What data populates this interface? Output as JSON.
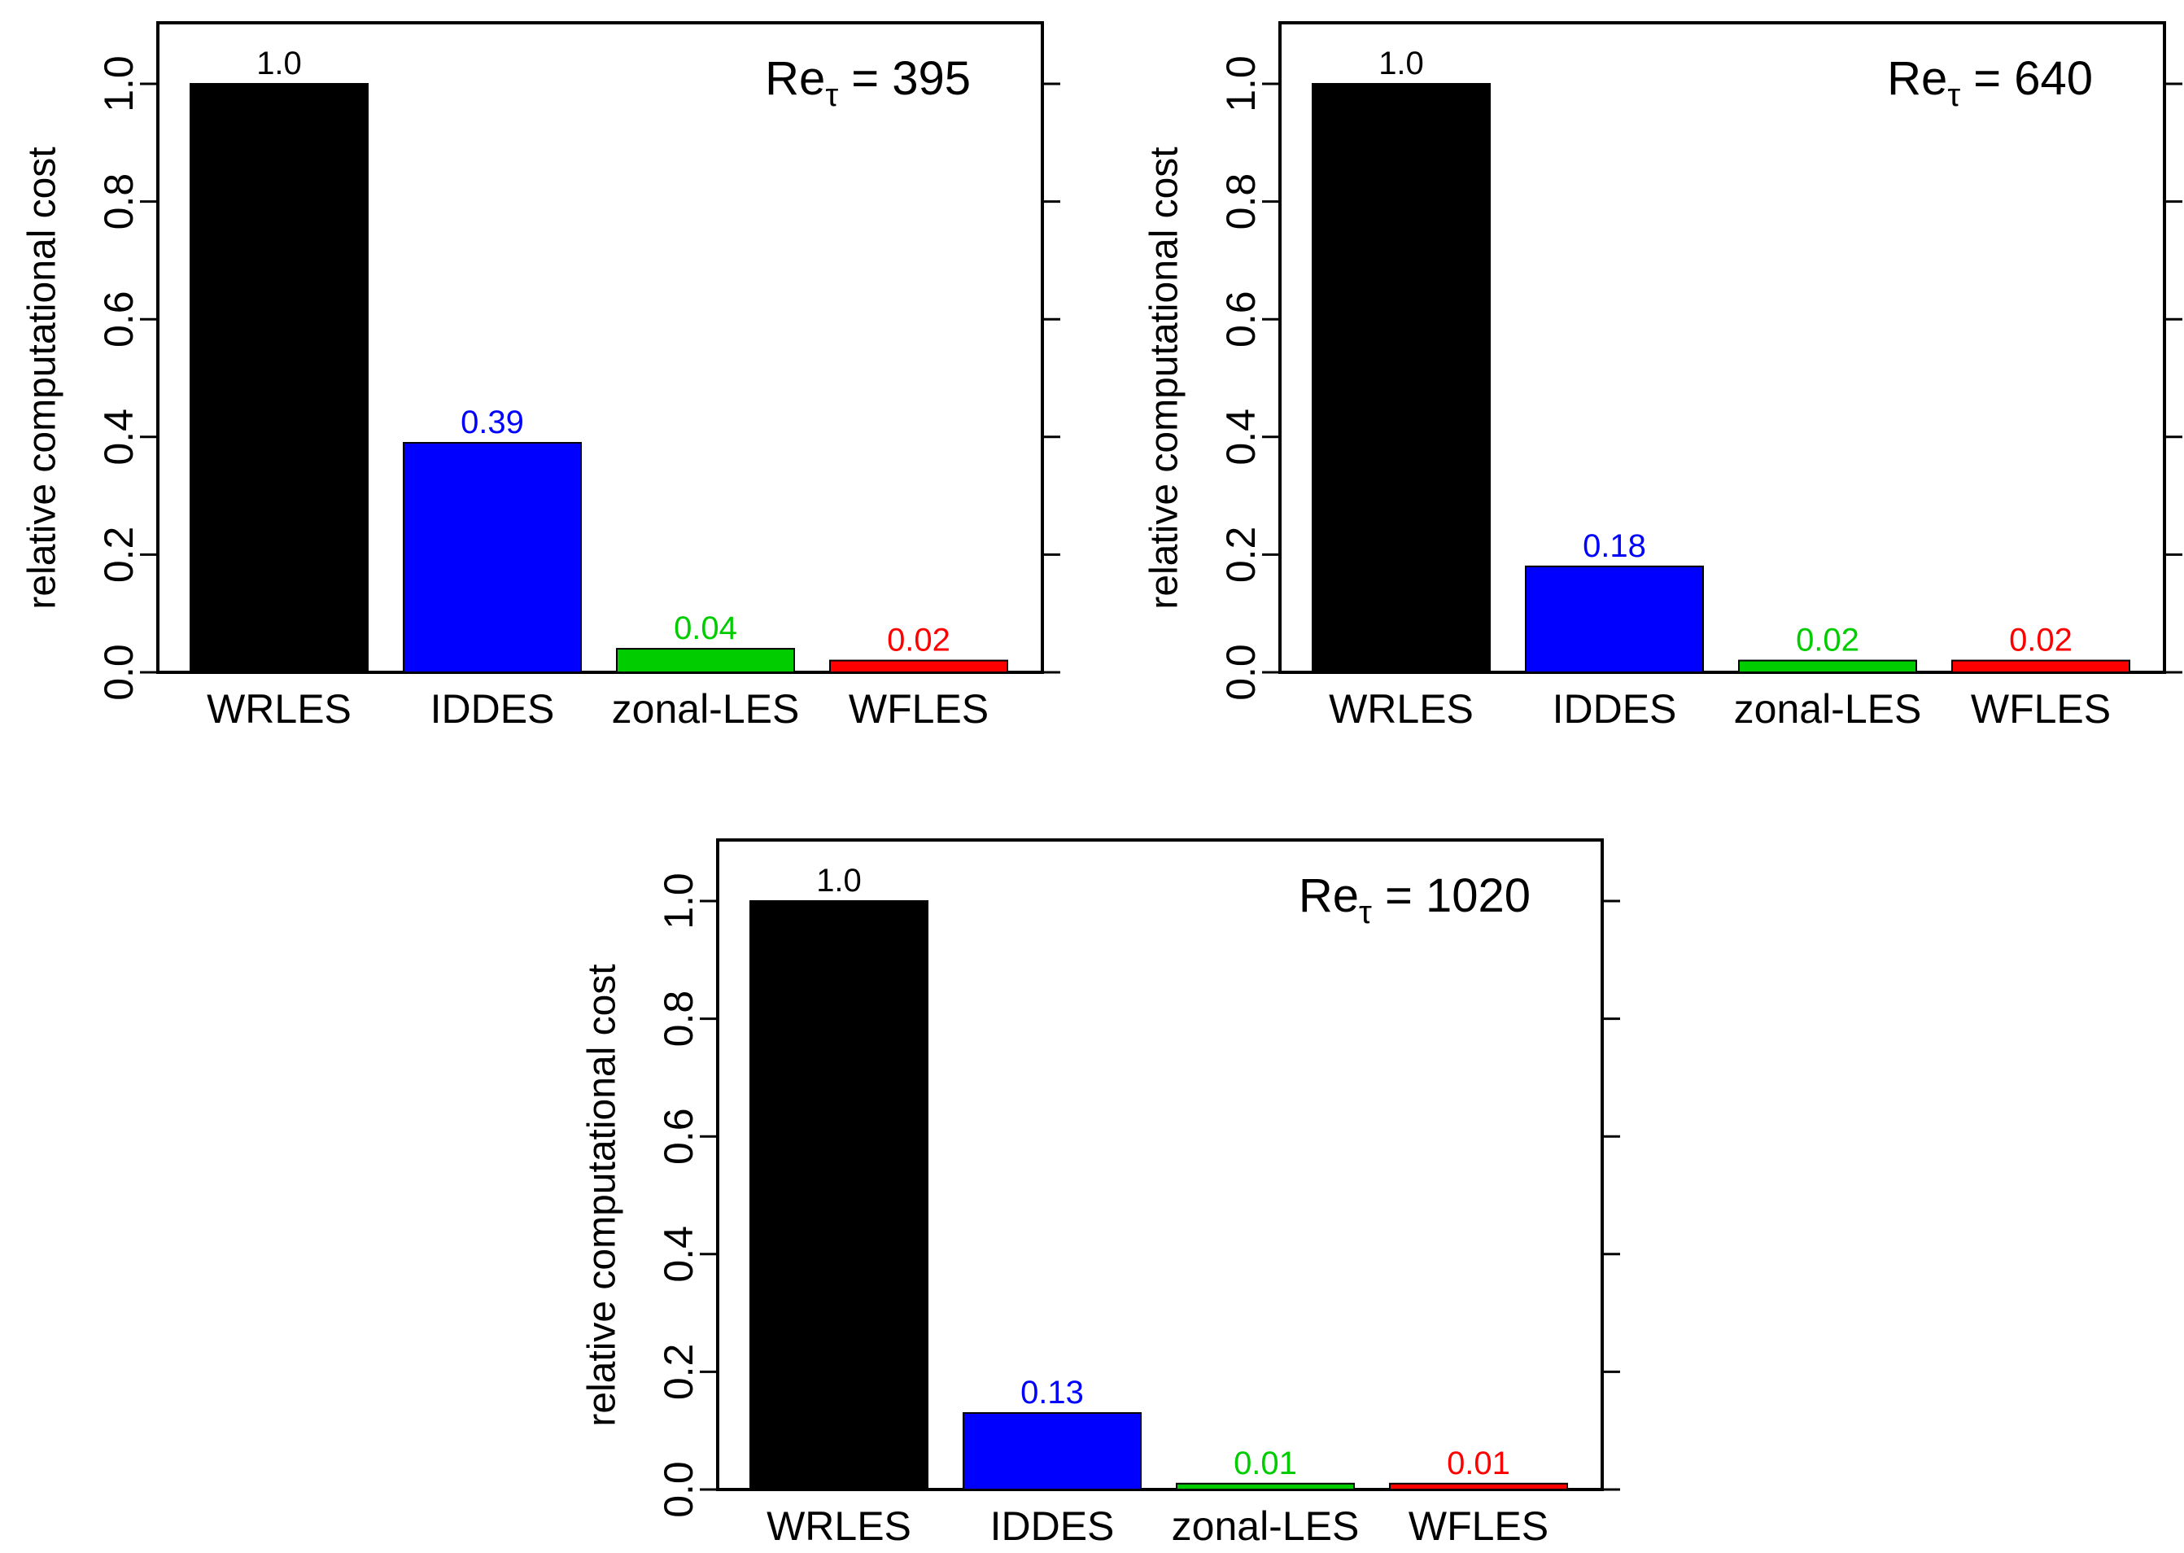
{
  "colors": {
    "WRLES": "#000000",
    "IDDES": "#0000ff",
    "zonal-LES": "#00cc00",
    "WFLES": "#ff0000",
    "axis": "#000000"
  },
  "chart_data": [
    {
      "type": "bar",
      "title": "Re_τ = 395",
      "title_parts": {
        "base": "Re",
        "sub": "τ",
        "rest": " = 395"
      },
      "ylabel": "relative computational cost",
      "xlabel": "",
      "categories": [
        "WRLES",
        "IDDES",
        "zonal-LES",
        "WFLES"
      ],
      "values": [
        1.0,
        0.39,
        0.04,
        0.02
      ],
      "value_labels": [
        "1.0",
        "0.39",
        "0.04",
        "0.02"
      ],
      "yticks": [
        "0.0",
        "0.2",
        "0.4",
        "0.6",
        "0.8",
        "1.0"
      ],
      "ylim": [
        0,
        1.1
      ],
      "grid": false
    },
    {
      "type": "bar",
      "title": "Re_τ = 640",
      "title_parts": {
        "base": "Re",
        "sub": "τ",
        "rest": " = 640"
      },
      "ylabel": "relative computational cost",
      "xlabel": "",
      "categories": [
        "WRLES",
        "IDDES",
        "zonal-LES",
        "WFLES"
      ],
      "values": [
        1.0,
        0.18,
        0.02,
        0.02
      ],
      "value_labels": [
        "1.0",
        "0.18",
        "0.02",
        "0.02"
      ],
      "yticks": [
        "0.0",
        "0.2",
        "0.4",
        "0.6",
        "0.8",
        "1.0"
      ],
      "ylim": [
        0,
        1.1
      ],
      "grid": false
    },
    {
      "type": "bar",
      "title": "Re_τ = 1020",
      "title_parts": {
        "base": "Re",
        "sub": "τ",
        "rest": " = 1020"
      },
      "ylabel": "relative computational cost",
      "xlabel": "",
      "categories": [
        "WRLES",
        "IDDES",
        "zonal-LES",
        "WFLES"
      ],
      "values": [
        1.0,
        0.13,
        0.01,
        0.01
      ],
      "value_labels": [
        "1.0",
        "0.13",
        "0.01",
        "0.01"
      ],
      "yticks": [
        "0.0",
        "0.2",
        "0.4",
        "0.6",
        "0.8",
        "1.0"
      ],
      "ylim": [
        0,
        1.1
      ],
      "grid": false
    }
  ]
}
